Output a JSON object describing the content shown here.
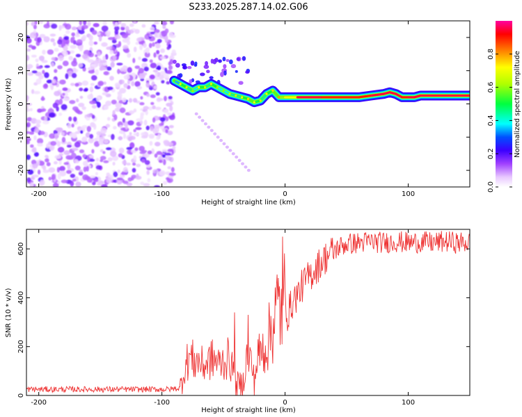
{
  "title": "S233.2025.287.14.02.G06",
  "chart_data": [
    {
      "type": "heatmap",
      "name": "spectrogram",
      "xlabel": "Height of straight line (km)",
      "ylabel": "Frequency (Hz)",
      "xlim": [
        -210,
        150
      ],
      "ylim": [
        -25,
        25
      ],
      "xticks": [
        -200,
        -100,
        0,
        100
      ],
      "yticks": [
        -20,
        -10,
        0,
        10,
        20
      ],
      "colorbar": {
        "label": "Normalized spectral amplitude",
        "range": [
          0,
          1
        ],
        "ticks": [
          0.0,
          0.2,
          0.4,
          0.6,
          0.8
        ]
      },
      "noise_region_x": [
        -210,
        -90
      ],
      "ridge": {
        "x": [
          -90,
          -85,
          -80,
          -75,
          -70,
          -65,
          -60,
          -55,
          -50,
          -45,
          -40,
          -35,
          -30,
          -25,
          -20,
          -15,
          -10,
          -5,
          0,
          10,
          20,
          30,
          40,
          50,
          60,
          70,
          80,
          85,
          90,
          95,
          100,
          105,
          110,
          120,
          130,
          140,
          150
        ],
        "freq": [
          7,
          6,
          5,
          4,
          5,
          5,
          6,
          5,
          4,
          3,
          2.5,
          2,
          1.5,
          0.5,
          1,
          3,
          4,
          2,
          2,
          2,
          2,
          2,
          2,
          2,
          2,
          2.5,
          3,
          3.5,
          3,
          2,
          2,
          2,
          2.5,
          2.5,
          2.5,
          2.5,
          2.5
        ],
        "amplitude": [
          0.35,
          0.5,
          0.45,
          0.4,
          0.5,
          0.45,
          0.5,
          0.4,
          0.4,
          0.45,
          0.45,
          0.5,
          0.55,
          0.5,
          0.45,
          0.5,
          0.55,
          0.6,
          0.7,
          0.95,
          0.95,
          0.9,
          0.9,
          0.9,
          0.9,
          0.95,
          0.95,
          0.95,
          0.95,
          0.9,
          0.95,
          0.95,
          0.95,
          0.95,
          0.95,
          0.95,
          0.95
        ]
      }
    },
    {
      "type": "line",
      "name": "snr",
      "xlabel": "Height of straight line (km)",
      "ylabel": "SNR (10 * v/v)",
      "xlim": [
        -210,
        150
      ],
      "ylim": [
        0,
        680
      ],
      "xticks": [
        -200,
        -100,
        0,
        100
      ],
      "yticks": [
        0,
        200,
        400,
        600
      ],
      "color": "#ee3333",
      "series": [
        {
          "name": "SNR",
          "x": [
            -210,
            -180,
            -150,
            -120,
            -95,
            -85,
            -82,
            -78,
            -74,
            -70,
            -66,
            -62,
            -58,
            -54,
            -50,
            -46,
            -43,
            -40,
            -37,
            -34,
            -31,
            -28,
            -25,
            -22,
            -19,
            -16,
            -13,
            -10,
            -7,
            -4,
            -2,
            0,
            2,
            5,
            8,
            11,
            14,
            17,
            20,
            25,
            30,
            35,
            40,
            45,
            50,
            60,
            70,
            80,
            90,
            100,
            110,
            120,
            130,
            140,
            150
          ],
          "y": [
            25,
            25,
            25,
            25,
            25,
            30,
            100,
            160,
            140,
            140,
            120,
            140,
            150,
            130,
            140,
            150,
            120,
            40,
            40,
            50,
            160,
            150,
            60,
            160,
            180,
            200,
            240,
            300,
            350,
            360,
            360,
            400,
            330,
            370,
            400,
            420,
            450,
            470,
            490,
            520,
            550,
            575,
            595,
            610,
            620,
            625,
            630,
            625,
            630,
            625,
            628,
            625,
            630,
            625,
            625
          ]
        }
      ],
      "spikes": [
        {
          "x": -2,
          "y": 650
        },
        {
          "x": -41,
          "y": 340
        },
        {
          "x": -30,
          "y": 330
        }
      ]
    }
  ]
}
